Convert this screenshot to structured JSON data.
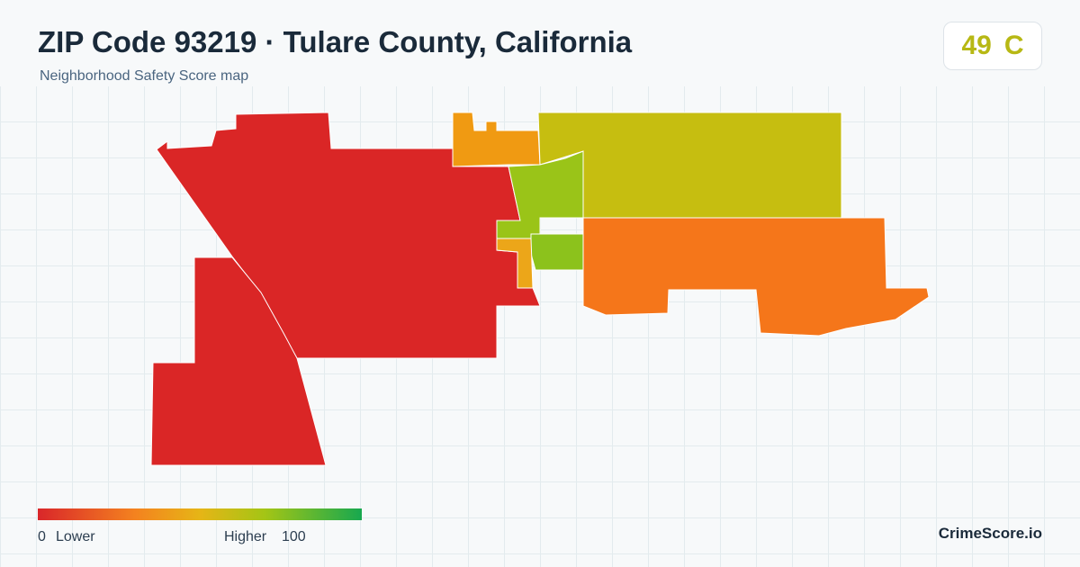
{
  "header": {
    "title": "ZIP Code 93219 · Tulare County, California",
    "subtitle": "Neighborhood Safety Score map"
  },
  "score": {
    "value": "49",
    "grade": "C"
  },
  "legend": {
    "min": "0",
    "min_label": "Lower",
    "max_label": "Higher",
    "max": "100"
  },
  "brand": "CrimeScore.io"
}
